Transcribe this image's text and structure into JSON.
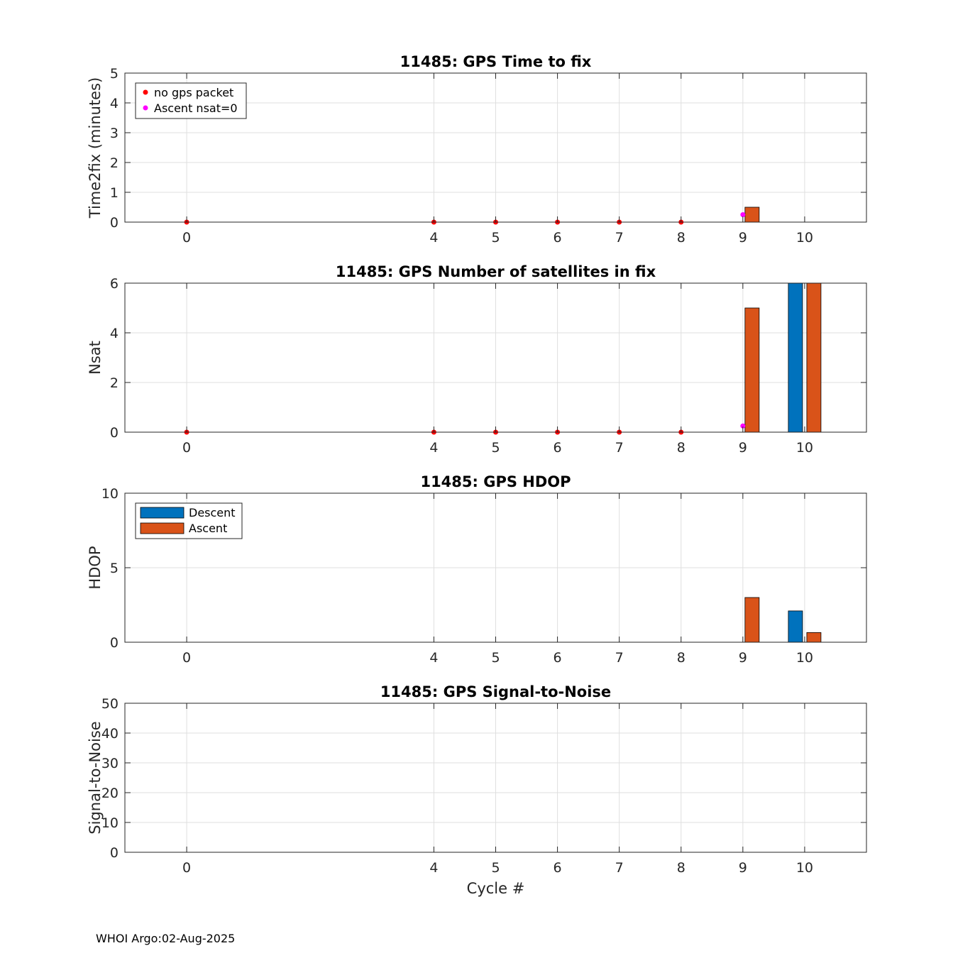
{
  "footer": "WHOI Argo:02-Aug-2025",
  "colors": {
    "descent": "#0072BD",
    "ascent": "#D95319",
    "no_gps": "#FF0000",
    "ascent_nsat0": "#FF00FF",
    "grid": "#DFDFDF",
    "axis": "#262626"
  },
  "chart_data": [
    {
      "type": "bar",
      "title": "11485: GPS Time to fix",
      "xlabel": "",
      "ylabel": "Time2fix (minutes)",
      "xlim": [
        -1,
        11
      ],
      "ylim": [
        0,
        5
      ],
      "xticks": [
        0,
        4,
        5,
        6,
        7,
        8,
        9,
        10
      ],
      "yticks": [
        0,
        1,
        2,
        3,
        4,
        5
      ],
      "grid": true,
      "series": [
        {
          "name": "Descent",
          "x": [],
          "values": []
        },
        {
          "name": "Ascent",
          "x": [
            9
          ],
          "values": [
            0.5
          ]
        }
      ],
      "markers": [
        {
          "name": "no gps packet",
          "x": [
            0,
            4,
            5,
            6,
            7,
            8
          ],
          "y": [
            0,
            0,
            0,
            0,
            0,
            0
          ]
        },
        {
          "name": "Ascent nsat=0",
          "x": [
            9
          ],
          "y": [
            0.25
          ]
        }
      ],
      "legend": {
        "entries": [
          "no gps packet",
          "Ascent nsat=0"
        ],
        "position": "top-left"
      }
    },
    {
      "type": "bar",
      "title": "11485: GPS Number of satellites in fix",
      "xlabel": "",
      "ylabel": "Nsat",
      "xlim": [
        -1,
        11
      ],
      "ylim": [
        0,
        6
      ],
      "xticks": [
        0,
        4,
        5,
        6,
        7,
        8,
        9,
        10
      ],
      "yticks": [
        0,
        2,
        4,
        6
      ],
      "grid": true,
      "series": [
        {
          "name": "Descent",
          "x": [
            10
          ],
          "values": [
            6
          ]
        },
        {
          "name": "Ascent",
          "x": [
            9,
            10
          ],
          "values": [
            5,
            6
          ]
        }
      ],
      "markers": [
        {
          "name": "no gps packet",
          "x": [
            0,
            4,
            5,
            6,
            7,
            8
          ],
          "y": [
            0,
            0,
            0,
            0,
            0,
            0
          ]
        },
        {
          "name": "Ascent nsat=0",
          "x": [
            9
          ],
          "y": [
            0.25
          ]
        }
      ]
    },
    {
      "type": "bar",
      "title": "11485: GPS HDOP",
      "xlabel": "",
      "ylabel": "HDOP",
      "xlim": [
        -1,
        11
      ],
      "ylim": [
        0,
        10
      ],
      "xticks": [
        0,
        4,
        5,
        6,
        7,
        8,
        9,
        10
      ],
      "yticks": [
        0,
        5,
        10
      ],
      "grid": true,
      "series": [
        {
          "name": "Descent",
          "x": [
            10
          ],
          "values": [
            2.1
          ]
        },
        {
          "name": "Ascent",
          "x": [
            9,
            10
          ],
          "values": [
            3.0,
            0.65
          ]
        }
      ],
      "markers": [],
      "legend": {
        "entries": [
          "Descent",
          "Ascent"
        ],
        "position": "top-left"
      }
    },
    {
      "type": "bar",
      "title": "11485: GPS Signal-to-Noise",
      "xlabel": "Cycle #",
      "ylabel": "Signal-to-Noise",
      "xlim": [
        -1,
        11
      ],
      "ylim": [
        0,
        50
      ],
      "xticks": [
        0,
        4,
        5,
        6,
        7,
        8,
        9,
        10
      ],
      "yticks": [
        0,
        10,
        20,
        30,
        40,
        50
      ],
      "grid": true,
      "series": [
        {
          "name": "Descent",
          "x": [],
          "values": []
        },
        {
          "name": "Ascent",
          "x": [],
          "values": []
        }
      ],
      "markers": []
    }
  ]
}
